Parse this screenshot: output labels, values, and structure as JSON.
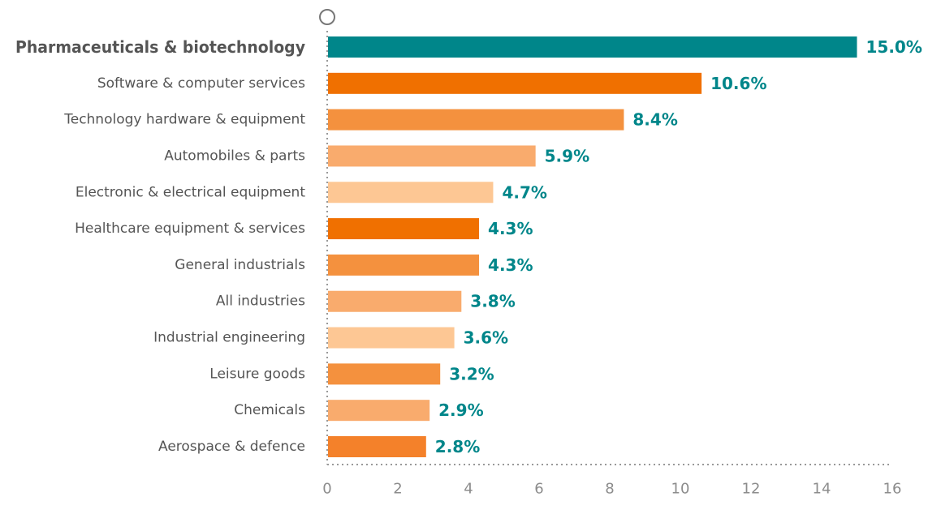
{
  "chart_data": {
    "type": "bar",
    "orientation": "horizontal",
    "categories": [
      "Pharmaceuticals & biotechnology",
      "Software & computer services",
      "Technology hardware & equipment",
      "Automobiles & parts",
      "Electronic & electrical equipment",
      "Healthcare equipment & services",
      "General industrials",
      "All industries",
      "Industrial engineering",
      "Leisure goods",
      "Chemicals",
      "Aerospace & defence"
    ],
    "values": [
      15.0,
      10.6,
      8.4,
      5.9,
      4.7,
      4.3,
      4.3,
      3.8,
      3.6,
      3.2,
      2.9,
      2.8
    ],
    "value_labels": [
      "15.0%",
      "10.6%",
      "8.4%",
      "5.9%",
      "4.7%",
      "4.3%",
      "4.3%",
      "3.8%",
      "3.6%",
      "3.2%",
      "2.9%",
      "2.8%"
    ],
    "highlight_index": 0,
    "bar_colors": [
      "#00868a",
      "#f07000",
      "#f4913e",
      "#f9ab6d",
      "#fdc794",
      "#f07000",
      "#f4913e",
      "#f9ab6d",
      "#fdc794",
      "#f4913e",
      "#f9ab6d",
      "#f4812a"
    ],
    "xlim": [
      0,
      16
    ],
    "xticks": [
      "0",
      "2",
      "4",
      "6",
      "8",
      "10",
      "12",
      "14",
      "16"
    ],
    "title": "",
    "xlabel": "",
    "ylabel": "",
    "grid": false,
    "legend": false
  },
  "colors": {
    "accent": "#00868a",
    "label_text": "#555555",
    "tick_text": "#8c8c8c",
    "axis_line": "#999999"
  }
}
